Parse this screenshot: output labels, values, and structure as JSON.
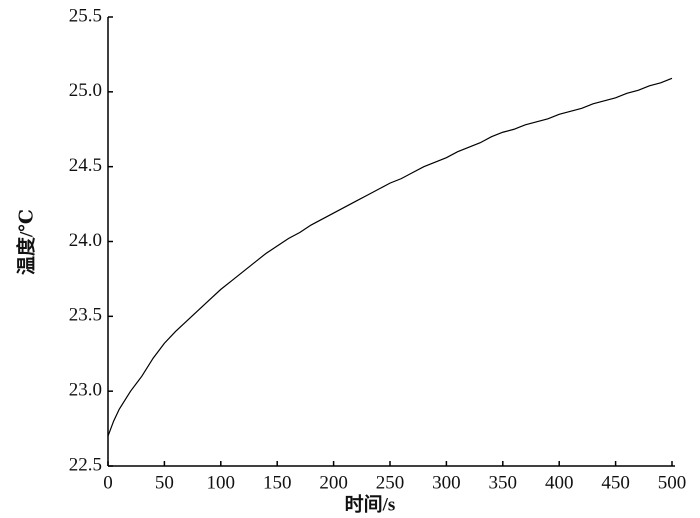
{
  "chart_data": {
    "type": "line",
    "xlabel": "时间/s",
    "ylabel": "温度/℃",
    "x": [
      0,
      5,
      10,
      20,
      30,
      40,
      50,
      60,
      70,
      80,
      90,
      100,
      110,
      120,
      130,
      140,
      150,
      160,
      170,
      180,
      190,
      200,
      210,
      220,
      230,
      240,
      250,
      260,
      270,
      280,
      290,
      300,
      310,
      320,
      330,
      340,
      350,
      360,
      370,
      380,
      390,
      400,
      410,
      420,
      430,
      440,
      450,
      460,
      470,
      480,
      490,
      500
    ],
    "values": [
      22.7,
      22.8,
      22.88,
      23.0,
      23.1,
      23.22,
      23.32,
      23.4,
      23.47,
      23.54,
      23.61,
      23.68,
      23.74,
      23.8,
      23.86,
      23.92,
      23.97,
      24.02,
      24.06,
      24.11,
      24.15,
      24.19,
      24.23,
      24.27,
      24.31,
      24.35,
      24.39,
      24.42,
      24.46,
      24.5,
      24.53,
      24.56,
      24.6,
      24.63,
      24.66,
      24.7,
      24.73,
      24.75,
      24.78,
      24.8,
      24.82,
      24.85,
      24.87,
      24.89,
      24.92,
      24.94,
      24.96,
      24.99,
      25.01,
      25.04,
      25.06,
      25.09
    ],
    "color": "#000000",
    "xlim": [
      0,
      500
    ],
    "xticks": [
      0,
      50,
      100,
      150,
      200,
      250,
      300,
      350,
      400,
      450,
      500
    ],
    "ylim": [
      22.5,
      25.5
    ],
    "yticks": [
      22.5,
      {
        "value": 23,
        "label": "23.0"
      },
      23.5,
      {
        "value": 24,
        "label": "24.0"
      },
      24.5,
      {
        "value": 25,
        "label": "25.0"
      },
      25.5
    ],
    "grid": false
  }
}
